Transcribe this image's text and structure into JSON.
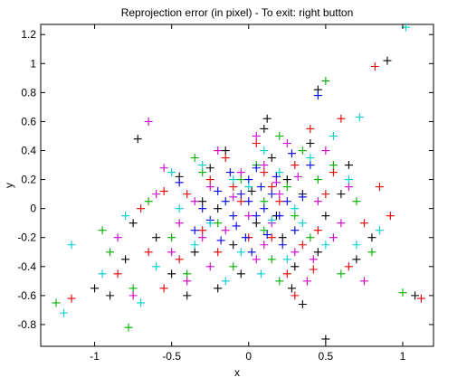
{
  "chart_data": {
    "type": "scatter",
    "title": "Reprojection error (in pixel) - To exit: right button",
    "xlabel": "x",
    "ylabel": "y",
    "xlim": [
      -1.35,
      1.2
    ],
    "ylim": [
      -0.95,
      1.27
    ],
    "grid": false,
    "marker": "+",
    "x_ticks": [
      -1,
      -0.5,
      0,
      0.5,
      1
    ],
    "x_tick_labels": [
      "-1",
      "-0.5",
      "0",
      "0.5",
      "1"
    ],
    "y_ticks": [
      1.2,
      1,
      0.8,
      0.6,
      0.4,
      0.2,
      0,
      -0.2,
      -0.4,
      -0.6,
      -0.8
    ],
    "y_tick_labels": [
      "1.2",
      "1",
      "0.8",
      "0.6",
      "0.4",
      "0.2",
      "0",
      "-0.2",
      "-0.4",
      "-0.6",
      "-0.8"
    ],
    "series": [
      {
        "color": "#000000",
        "points": [
          [
            0.9,
            1.02
          ],
          [
            -0.72,
            0.48
          ],
          [
            0.45,
            0.82
          ],
          [
            -1.0,
            -0.55
          ],
          [
            -0.9,
            -0.6
          ],
          [
            0.35,
            -0.66
          ],
          [
            0.5,
            -0.9
          ],
          [
            1.08,
            -0.6
          ],
          [
            -0.45,
            0.22
          ],
          [
            0.1,
            0.55
          ],
          [
            -0.2,
            0.0
          ],
          [
            0.05,
            -0.1
          ],
          [
            0.25,
            0.2
          ],
          [
            -0.35,
            -0.3
          ],
          [
            0.6,
            0.1
          ],
          [
            -0.6,
            -0.2
          ],
          [
            0.3,
            -0.4
          ],
          [
            0.15,
            0.35
          ],
          [
            -0.1,
            -0.25
          ],
          [
            0.4,
            0.45
          ],
          [
            -0.75,
            -0.1
          ],
          [
            0.7,
            -0.35
          ],
          [
            -0.25,
            0.28
          ],
          [
            0.02,
            0.12
          ],
          [
            -0.15,
            0.4
          ],
          [
            0.22,
            -0.2
          ],
          [
            0.5,
            -0.05
          ],
          [
            -0.5,
            -0.45
          ],
          [
            0.12,
            0.62
          ],
          [
            -0.05,
            -0.45
          ],
          [
            0.35,
            0.1
          ],
          [
            -0.3,
            0.05
          ],
          [
            0.18,
            -0.05
          ],
          [
            0.65,
            0.3
          ],
          [
            -0.8,
            -0.35
          ],
          [
            0.8,
            -0.2
          ],
          [
            -0.4,
            -0.6
          ],
          [
            0.28,
            -0.55
          ],
          [
            0.45,
            -0.3
          ],
          [
            -0.2,
            -0.55
          ]
        ]
      },
      {
        "color": "#e00000",
        "points": [
          [
            0.82,
            0.98
          ],
          [
            1.12,
            -0.62
          ],
          [
            0.6,
            0.62
          ],
          [
            -0.55,
            -0.55
          ],
          [
            0.3,
            0.3
          ],
          [
            -0.1,
            0.15
          ],
          [
            0.15,
            -0.2
          ],
          [
            -0.4,
            0.1
          ],
          [
            0.45,
            -0.15
          ],
          [
            -0.2,
            -0.3
          ],
          [
            0.05,
            0.45
          ],
          [
            0.55,
            0.25
          ],
          [
            -0.65,
            -0.3
          ],
          [
            0.25,
            -0.45
          ],
          [
            -0.05,
            0.05
          ],
          [
            0.75,
            -0.1
          ],
          [
            -0.3,
            -0.15
          ],
          [
            0.1,
            0.25
          ],
          [
            0.4,
            0.55
          ],
          [
            -0.85,
            -0.45
          ],
          [
            0.35,
            -0.25
          ],
          [
            -0.15,
            0.35
          ],
          [
            0.2,
            0.05
          ],
          [
            0.65,
            -0.4
          ],
          [
            -0.45,
            -0.35
          ],
          [
            0.0,
            -0.2
          ],
          [
            0.5,
            0.1
          ],
          [
            -0.7,
            0.0
          ],
          [
            0.85,
            0.15
          ],
          [
            -1.15,
            -0.62
          ],
          [
            0.3,
            -0.6
          ],
          [
            0.15,
            0.15
          ],
          [
            -0.25,
            0.2
          ],
          [
            0.42,
            -0.42
          ],
          [
            -0.55,
            0.12
          ],
          [
            0.92,
            -0.05
          ]
        ]
      },
      {
        "color": "#00b000",
        "points": [
          [
            0.5,
            0.88
          ],
          [
            -1.25,
            -0.65
          ],
          [
            -0.78,
            -0.82
          ],
          [
            1.0,
            -0.58
          ],
          [
            0.2,
            0.5
          ],
          [
            -0.3,
            0.25
          ],
          [
            0.1,
            -0.15
          ],
          [
            -0.5,
            -0.2
          ],
          [
            0.55,
            0.3
          ],
          [
            0.4,
            -0.2
          ],
          [
            -0.1,
            -0.4
          ],
          [
            0.25,
            0.15
          ],
          [
            -0.65,
            0.05
          ],
          [
            0.05,
            0.3
          ],
          [
            -0.2,
            -0.1
          ],
          [
            0.7,
            0.05
          ],
          [
            -0.4,
            -0.45
          ],
          [
            0.15,
            -0.35
          ],
          [
            0.35,
            0.4
          ],
          [
            -0.9,
            -0.3
          ],
          [
            0.6,
            -0.45
          ],
          [
            -0.05,
            0.2
          ],
          [
            0.3,
            -0.05
          ],
          [
            -0.35,
            0.35
          ],
          [
            0.1,
            0.05
          ],
          [
            0.45,
            0.2
          ],
          [
            -0.75,
            -0.55
          ],
          [
            0.8,
            -0.3
          ],
          [
            -0.95,
            -0.15
          ],
          [
            0.2,
            -0.5
          ]
        ]
      },
      {
        "color": "#0000dd",
        "points": [
          [
            0.45,
            0.78
          ],
          [
            0.0,
            0.05
          ],
          [
            0.05,
            -0.05
          ],
          [
            -0.05,
            0.1
          ],
          [
            0.1,
            0.0
          ],
          [
            -0.1,
            -0.05
          ],
          [
            0.15,
            0.1
          ],
          [
            -0.15,
            0.05
          ],
          [
            0.08,
            0.15
          ],
          [
            -0.08,
            -0.12
          ],
          [
            0.2,
            -0.05
          ],
          [
            -0.2,
            0.12
          ],
          [
            0.12,
            -0.18
          ],
          [
            0.0,
            0.2
          ],
          [
            -0.02,
            -0.2
          ],
          [
            0.25,
            0.05
          ],
          [
            -0.25,
            -0.08
          ],
          [
            0.05,
            0.28
          ],
          [
            0.3,
            -0.15
          ],
          [
            -0.3,
            0.0
          ],
          [
            0.18,
            0.22
          ],
          [
            -0.12,
            0.25
          ],
          [
            0.22,
            -0.25
          ],
          [
            -0.18,
            -0.22
          ],
          [
            0.35,
            0.08
          ],
          [
            -0.35,
            -0.15
          ],
          [
            0.02,
            -0.3
          ],
          [
            0.4,
            0.3
          ],
          [
            -0.45,
            0.18
          ],
          [
            0.28,
            0.38
          ]
        ]
      },
      {
        "color": "#cc00cc",
        "points": [
          [
            -0.65,
            0.6
          ],
          [
            -0.35,
            0.05
          ],
          [
            0.2,
            0.1
          ],
          [
            -0.15,
            -0.15
          ],
          [
            0.1,
            0.3
          ],
          [
            -0.25,
            0.15
          ],
          [
            0.3,
            -0.3
          ],
          [
            -0.5,
            -0.3
          ],
          [
            0.45,
            0.05
          ],
          [
            0.0,
            -0.05
          ],
          [
            -0.05,
            0.25
          ],
          [
            0.15,
            -0.1
          ],
          [
            0.55,
            -0.2
          ],
          [
            -0.6,
            0.1
          ],
          [
            0.25,
            0.45
          ],
          [
            -0.4,
            -0.5
          ],
          [
            0.38,
            -0.5
          ],
          [
            -0.2,
            0.4
          ],
          [
            0.05,
            -0.35
          ],
          [
            0.65,
            0.15
          ],
          [
            -0.75,
            -0.6
          ],
          [
            0.75,
            -0.5
          ],
          [
            -0.3,
            -0.2
          ],
          [
            0.32,
            0.22
          ],
          [
            -0.1,
            0.08
          ],
          [
            0.1,
            -0.25
          ],
          [
            -0.55,
            0.28
          ],
          [
            0.5,
            0.4
          ],
          [
            -0.85,
            -0.2
          ],
          [
            0.6,
            -0.1
          ],
          [
            -0.25,
            -0.4
          ],
          [
            0.18,
            0.18
          ],
          [
            -0.45,
            -0.1
          ],
          [
            0.42,
            -0.35
          ],
          [
            0.05,
            0.5
          ]
        ]
      },
      {
        "color": "#00cccc",
        "points": [
          [
            1.02,
            1.25
          ],
          [
            0.72,
            0.63
          ],
          [
            -1.15,
            -0.25
          ],
          [
            -1.2,
            -0.72
          ],
          [
            -0.25,
            -0.1
          ],
          [
            0.2,
            0.25
          ],
          [
            -0.05,
            -0.3
          ],
          [
            0.35,
            -0.1
          ],
          [
            -0.45,
            0.0
          ],
          [
            0.1,
            0.4
          ],
          [
            0.5,
            -0.25
          ],
          [
            -0.3,
            0.3
          ],
          [
            0.0,
            0.15
          ],
          [
            0.25,
            -0.35
          ],
          [
            -0.6,
            -0.4
          ],
          [
            0.65,
            0.2
          ],
          [
            -0.15,
            -0.5
          ],
          [
            0.4,
            0.35
          ],
          [
            -0.8,
            -0.05
          ],
          [
            0.15,
            -0.08
          ],
          [
            -0.1,
            0.2
          ],
          [
            0.55,
            0.5
          ],
          [
            -0.35,
            -0.25
          ],
          [
            0.3,
            0.0
          ],
          [
            -0.95,
            -0.45
          ],
          [
            0.7,
            -0.25
          ],
          [
            0.08,
            -0.45
          ],
          [
            -0.5,
            0.25
          ],
          [
            0.85,
            -0.15
          ],
          [
            -0.7,
            -0.65
          ]
        ]
      }
    ]
  }
}
